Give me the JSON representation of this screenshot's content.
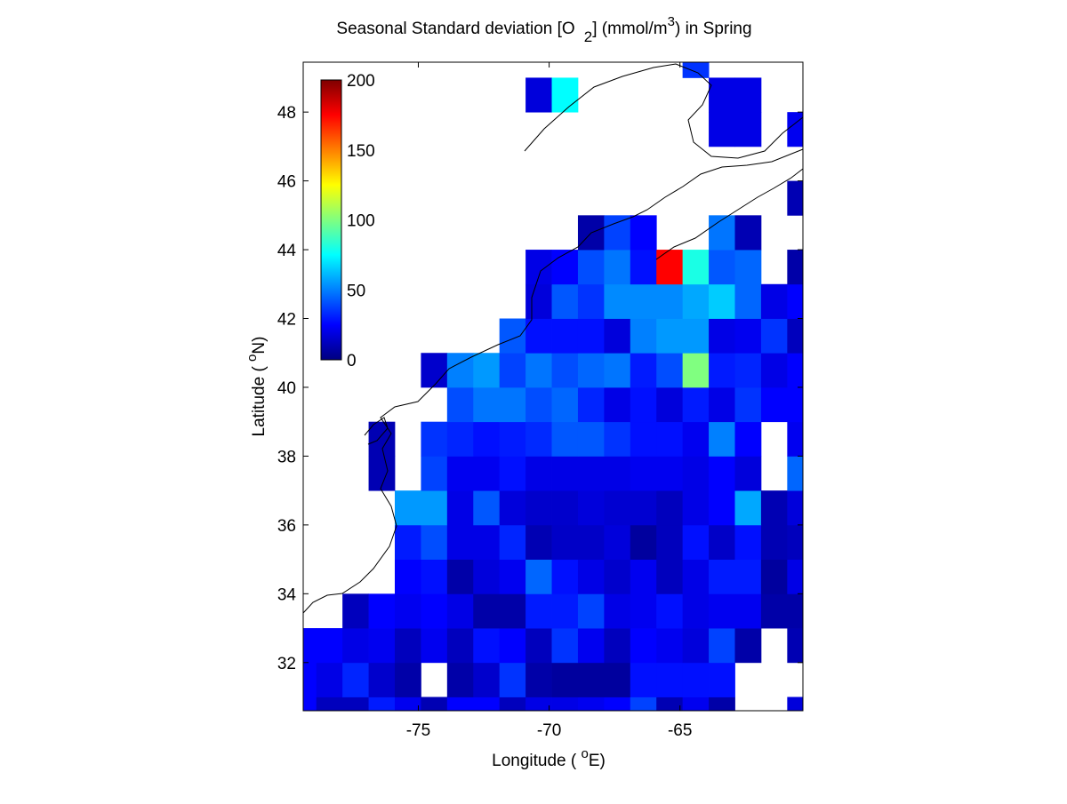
{
  "chart_data": {
    "type": "heatmap",
    "title": [
      "Seasonal Standard deviation [O",
      "2",
      "] (mmol/m",
      "3",
      ") in  Spring"
    ],
    "x_label": [
      "Longitude ( ",
      "o",
      "E)"
    ],
    "y_label": [
      "Latitude ( ",
      "o",
      "N)"
    ],
    "xlim": [
      -79.4,
      -60.3
    ],
    "ylim": [
      30.6,
      49.45
    ],
    "xticks": [
      -75,
      -70,
      -65
    ],
    "yticks": [
      32,
      34,
      36,
      38,
      40,
      42,
      44,
      46,
      48
    ],
    "x_edges": [
      -79.4,
      -78.9,
      -77.9,
      -76.9,
      -75.9,
      -74.9,
      -73.9,
      -72.9,
      -71.9,
      -70.9,
      -69.9,
      -68.9,
      -67.9,
      -66.9,
      -65.9,
      -64.9,
      -63.9,
      -62.9,
      -61.9,
      -60.9,
      -60.3
    ],
    "y_edges": [
      30.6,
      31,
      32,
      33,
      34,
      35,
      36,
      37,
      38,
      39,
      40,
      41,
      42,
      43,
      44,
      45,
      46,
      47,
      48,
      49,
      49.45
    ],
    "colormap": "jet",
    "clim": [
      0,
      200
    ],
    "colorbar_ticks": [
      0,
      50,
      100,
      150,
      200
    ],
    "values": [
      [
        25,
        12,
        12,
        30,
        22,
        10,
        25,
        25,
        12,
        20,
        20,
        22,
        25,
        38,
        10,
        22,
        8,
        null,
        null,
        18
      ],
      [
        25,
        20,
        32,
        15,
        8,
        null,
        8,
        15,
        35,
        8,
        6,
        6,
        6,
        28,
        28,
        28,
        28,
        null,
        null,
        null
      ],
      [
        25,
        25,
        20,
        22,
        12,
        22,
        12,
        28,
        25,
        12,
        35,
        22,
        12,
        25,
        22,
        18,
        38,
        8,
        null,
        10
      ],
      [
        null,
        null,
        12,
        25,
        22,
        25,
        20,
        8,
        8,
        30,
        30,
        38,
        20,
        22,
        28,
        20,
        22,
        22,
        8,
        8
      ],
      [
        null,
        null,
        null,
        null,
        25,
        28,
        8,
        18,
        22,
        45,
        28,
        20,
        15,
        22,
        12,
        20,
        30,
        30,
        6,
        20
      ],
      [
        null,
        null,
        null,
        null,
        30,
        40,
        20,
        20,
        32,
        10,
        14,
        14,
        18,
        6,
        12,
        28,
        14,
        28,
        10,
        12
      ],
      [
        null,
        null,
        null,
        null,
        55,
        55,
        20,
        42,
        18,
        15,
        15,
        18,
        16,
        16,
        12,
        20,
        25,
        58,
        10,
        18
      ],
      [
        null,
        null,
        null,
        10,
        null,
        38,
        22,
        22,
        28,
        20,
        20,
        20,
        20,
        22,
        22,
        20,
        25,
        18,
        null,
        45
      ],
      [
        null,
        null,
        null,
        10,
        null,
        35,
        32,
        28,
        30,
        33,
        42,
        42,
        35,
        28,
        28,
        22,
        50,
        25,
        null,
        22
      ],
      [
        null,
        null,
        null,
        null,
        null,
        null,
        40,
        48,
        48,
        40,
        45,
        32,
        20,
        28,
        18,
        30,
        20,
        35,
        25,
        25
      ],
      [
        null,
        null,
        null,
        null,
        null,
        15,
        50,
        55,
        38,
        48,
        40,
        45,
        48,
        30,
        40,
        100,
        30,
        32,
        20,
        25
      ],
      [
        null,
        null,
        null,
        null,
        null,
        null,
        null,
        null,
        42,
        28,
        28,
        28,
        18,
        50,
        55,
        55,
        20,
        22,
        35,
        12
      ],
      [
        null,
        null,
        null,
        null,
        null,
        null,
        null,
        null,
        null,
        18,
        42,
        35,
        52,
        52,
        52,
        58,
        65,
        45,
        20,
        25
      ],
      [
        null,
        null,
        null,
        null,
        null,
        null,
        null,
        null,
        null,
        20,
        25,
        40,
        48,
        28,
        175,
        80,
        42,
        45,
        null,
        8
      ],
      [
        null,
        null,
        null,
        null,
        null,
        null,
        null,
        null,
        null,
        null,
        null,
        8,
        38,
        25,
        null,
        null,
        48,
        10,
        null,
        null
      ],
      [
        null,
        null,
        null,
        null,
        null,
        null,
        null,
        null,
        null,
        null,
        null,
        null,
        null,
        null,
        null,
        null,
        null,
        null,
        null,
        10
      ],
      [
        null,
        null,
        null,
        null,
        null,
        null,
        null,
        null,
        null,
        null,
        null,
        null,
        null,
        null,
        null,
        null,
        null,
        null,
        null,
        null
      ],
      [
        null,
        null,
        null,
        null,
        null,
        null,
        null,
        null,
        null,
        null,
        null,
        null,
        null,
        null,
        null,
        null,
        20,
        20,
        null,
        22
      ],
      [
        null,
        null,
        null,
        null,
        null,
        null,
        null,
        null,
        null,
        18,
        75,
        null,
        null,
        null,
        null,
        null,
        20,
        20,
        null,
        null
      ],
      [
        null,
        null,
        null,
        null,
        null,
        null,
        null,
        null,
        null,
        null,
        null,
        null,
        null,
        null,
        null,
        35,
        null,
        null,
        null,
        null
      ]
    ]
  }
}
